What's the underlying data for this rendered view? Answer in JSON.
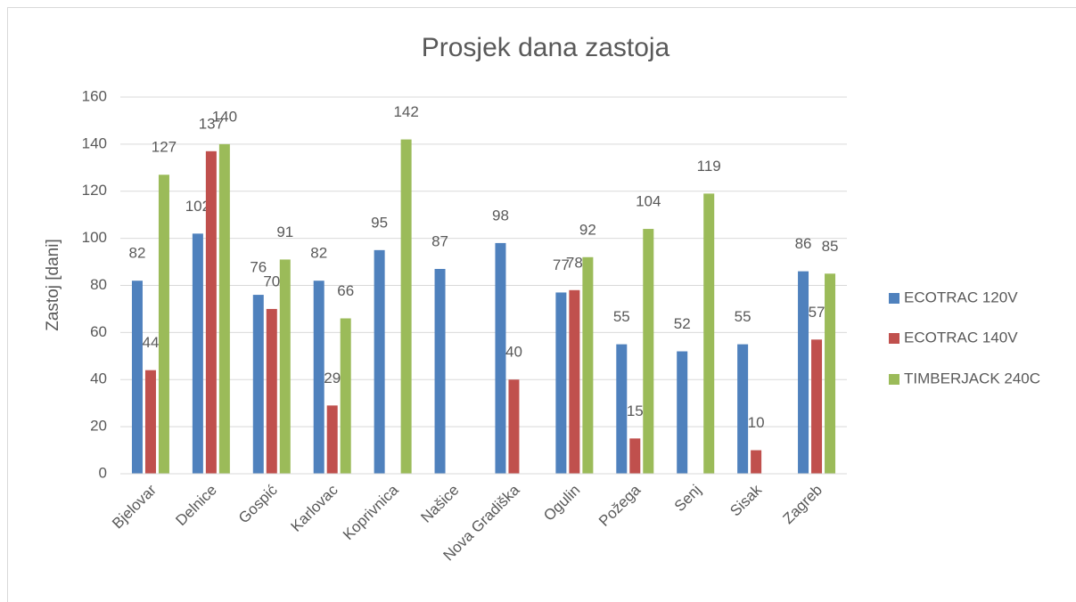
{
  "chart_data": {
    "type": "bar",
    "title": "Prosjek dana zastoja",
    "y_label": "Zastoj [dani]",
    "categories": [
      "Bjelovar",
      "Delnice",
      "Gospić",
      "Karlovac",
      "Koprivnica",
      "Našice",
      "Nova Gradiška",
      "Ogulin",
      "Požega",
      "Senj",
      "Sisak",
      "Zagreb"
    ],
    "series": [
      {
        "name": "ECOTRAC 120V",
        "color": "#4f81bd",
        "values": [
          82,
          102,
          76,
          82,
          95,
          87,
          98,
          77,
          55,
          52,
          55,
          86
        ]
      },
      {
        "name": "ECOTRAC 140V",
        "color": "#c0504d",
        "values": [
          44,
          137,
          70,
          29,
          null,
          null,
          40,
          78,
          15,
          null,
          10,
          57
        ]
      },
      {
        "name": "TIMBERJACK 240C",
        "color": "#9bbb59",
        "values": [
          127,
          140,
          91,
          66,
          142,
          null,
          null,
          92,
          104,
          119,
          null,
          85
        ]
      }
    ],
    "ylim": [
      0,
      160
    ],
    "yticks": [
      0,
      20,
      40,
      60,
      80,
      100,
      120,
      140,
      160
    ],
    "grid": true,
    "legend": "right",
    "data_labels": true
  }
}
